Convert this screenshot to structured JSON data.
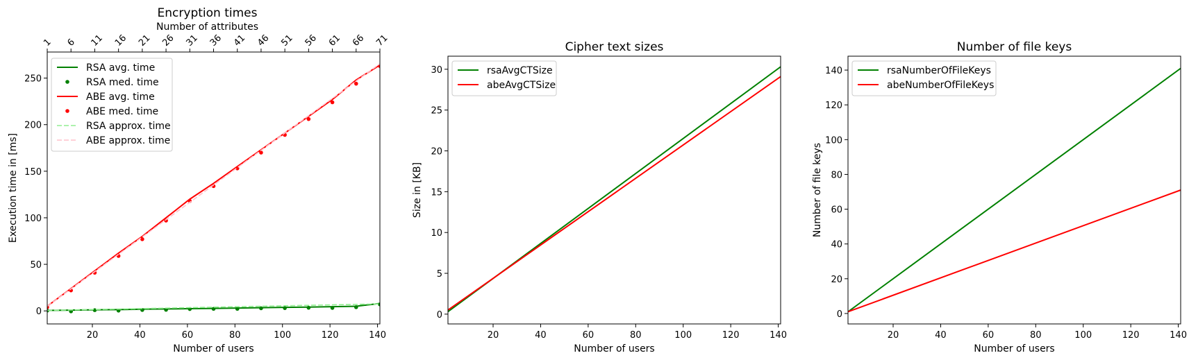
{
  "chart_data": [
    {
      "type": "line",
      "title": "Encryption times",
      "xlabel": "Number of users",
      "ylabel": "Execution time in [ms]",
      "secondary_xlabel": "Number of attributes",
      "xlim": [
        1,
        141
      ],
      "ylim": [
        -14,
        278
      ],
      "xticks": [
        20,
        40,
        60,
        80,
        100,
        120,
        140
      ],
      "yticks": [
        0,
        50,
        100,
        150,
        200,
        250
      ],
      "secondary_xticks": [
        1,
        6,
        11,
        16,
        21,
        26,
        31,
        36,
        41,
        46,
        51,
        56,
        61,
        66,
        71
      ],
      "secondary_xticks_at_users": [
        1,
        11,
        21,
        31,
        41,
        51,
        61,
        71,
        81,
        91,
        101,
        111,
        121,
        131,
        141
      ],
      "x": [
        1,
        11,
        21,
        31,
        41,
        51,
        61,
        71,
        81,
        91,
        101,
        111,
        121,
        131,
        141
      ],
      "legend_position": "upper-left",
      "series": [
        {
          "name": "RSA avg. time",
          "style": "solid",
          "color": "#008000",
          "values": [
            0.5,
            0.8,
            1.2,
            1.4,
            1.8,
            2.1,
            2.4,
            2.7,
            3.0,
            3.4,
            3.8,
            4.1,
            4.5,
            5.0,
            8.0
          ]
        },
        {
          "name": "RSA med. time",
          "style": "dots",
          "color": "#008000",
          "values": [
            0.3,
            -0.5,
            0.8,
            0.3,
            1.0,
            1.2,
            2.0,
            2.2,
            2.2,
            2.8,
            3.0,
            3.4,
            3.2,
            4.0,
            7.0
          ]
        },
        {
          "name": "ABE avg. time",
          "style": "solid",
          "color": "#ff0000",
          "values": [
            5,
            24,
            43,
            62,
            80,
            100,
            120,
            137,
            155,
            173,
            191,
            209,
            227,
            248,
            264
          ]
        },
        {
          "name": "ABE med. time",
          "style": "dots",
          "color": "#ff0000",
          "values": [
            4,
            22,
            41,
            59,
            77,
            97,
            118,
            134,
            153,
            170,
            189,
            206,
            224,
            244,
            263
          ]
        },
        {
          "name": "RSA approx. time",
          "style": "dashed",
          "color": "#90ee90",
          "values": [
            0.5,
            1.0,
            1.5,
            2.0,
            2.5,
            3.0,
            3.5,
            4.0,
            4.5,
            5.0,
            5.5,
            6.0,
            6.5,
            7.0,
            7.5
          ]
        },
        {
          "name": "ABE approx. time",
          "style": "dashed",
          "color": "#ffc0cb",
          "values": [
            5,
            23.6,
            42.2,
            60.8,
            79.4,
            98,
            116.6,
            135.2,
            153.8,
            172.4,
            191,
            209.6,
            228.2,
            246.8,
            265.4
          ]
        }
      ]
    },
    {
      "type": "line",
      "title": "Cipher text sizes",
      "xlabel": "Number of users",
      "ylabel": "Size in [KB]",
      "xlim": [
        1,
        141
      ],
      "ylim": [
        -1.2,
        31.6
      ],
      "xticks": [
        20,
        40,
        60,
        80,
        100,
        120,
        140
      ],
      "yticks": [
        0,
        5,
        10,
        15,
        20,
        25,
        30
      ],
      "x": [
        1,
        141
      ],
      "legend_position": "upper-left",
      "series": [
        {
          "name": "rsaAvgCTSize",
          "style": "solid",
          "color": "#008000",
          "values": [
            0.3,
            30.3
          ]
        },
        {
          "name": "abeAvgCTSize",
          "style": "solid",
          "color": "#ff0000",
          "values": [
            0.5,
            29.1
          ]
        }
      ]
    },
    {
      "type": "line",
      "title": "Number of file keys",
      "xlabel": "Number of users",
      "ylabel": "Number of file keys",
      "xlim": [
        1,
        141
      ],
      "ylim": [
        -6,
        148
      ],
      "xticks": [
        20,
        40,
        60,
        80,
        100,
        120,
        140
      ],
      "yticks": [
        0,
        20,
        40,
        60,
        80,
        100,
        120,
        140
      ],
      "x": [
        1,
        141
      ],
      "legend_position": "upper-left",
      "series": [
        {
          "name": "rsaNumberOfFileKeys",
          "style": "solid",
          "color": "#008000",
          "values": [
            1,
            141
          ]
        },
        {
          "name": "abeNumberOfFileKeys",
          "style": "solid",
          "color": "#ff0000",
          "values": [
            1,
            71
          ]
        }
      ]
    }
  ]
}
